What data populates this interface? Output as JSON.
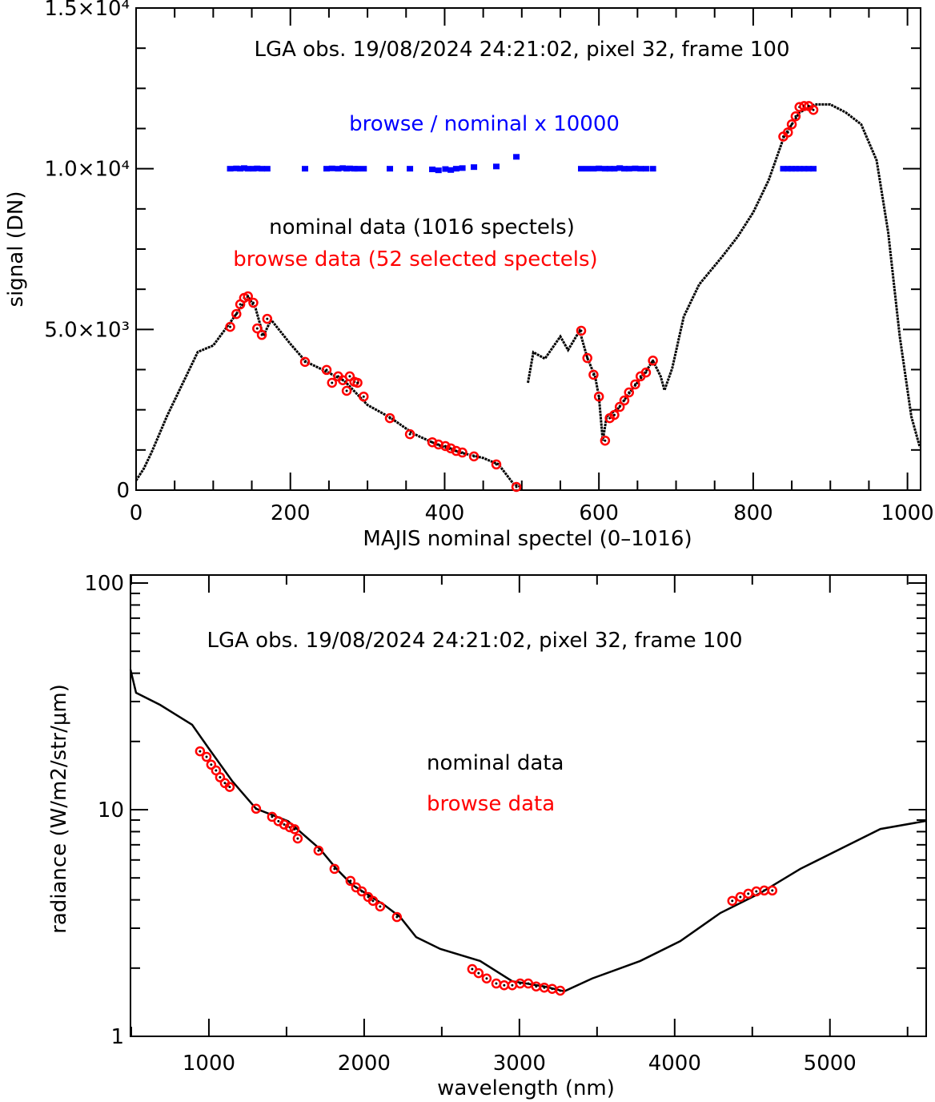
{
  "colors": {
    "nominal": "#000000",
    "browse": "#ff0000",
    "ratio": "#0000ff"
  },
  "chart_data": [
    {
      "type": "scatter",
      "title": "LGA obs. 19/08/2024 24:21:02, pixel 32, frame 100",
      "xlabel": "MAJIS nominal spectel (0–1016)",
      "ylabel": "signal (DN)",
      "xlim": [
        0,
        1017
      ],
      "ylim": [
        0,
        15000
      ],
      "x_ticks": [
        0,
        200,
        400,
        600,
        800,
        1000
      ],
      "x_tick_labels": [
        "0",
        "200",
        "400",
        "600",
        "800",
        "1000"
      ],
      "y_ticks": [
        0,
        5000,
        10000,
        15000
      ],
      "y_tick_labels": [
        "0",
        "5.0×10³",
        "1.0×10⁴",
        "1.5×10⁴"
      ],
      "annotations": {
        "ratio_label": "browse / nominal x 10000",
        "nominal_label": "nominal data (1016 spectels)",
        "browse_label": "browse data (52 selected spectels)"
      },
      "series": [
        {
          "name": "nominal data",
          "segments": [
            {
              "x": [
                0,
                10,
                20,
                40,
                60,
                80,
                100,
                120,
                135,
                145,
                155,
                165,
                175,
                200,
                220,
                250,
                270,
                300,
                330,
                360,
                390,
                420,
                450,
                470,
                490,
                500
              ],
              "y": [
                300,
                670,
                1170,
                2300,
                3300,
                4300,
                4500,
                5150,
                5650,
                6030,
                5650,
                4800,
                5300,
                4550,
                4000,
                3650,
                3400,
                2650,
                2250,
                1750,
                1420,
                1170,
                1000,
                800,
                170,
                100
              ]
            },
            {
              "x": [
                508,
                515,
                530,
                550,
                560,
                575,
                585,
                595,
                600,
                605,
                610,
                625,
                640,
                660,
                670,
                680,
                685,
                695,
                710,
                730,
                760,
                780,
                800,
                820,
                840,
                860,
                880,
                900,
                920,
                940,
                960,
                975,
                990,
                1005,
                1016
              ],
              "y": [
                3340,
                4290,
                4090,
                4780,
                4360,
                4960,
                4110,
                3540,
                2910,
                1540,
                2290,
                2540,
                3040,
                3660,
                4030,
                3540,
                3110,
                3790,
                5400,
                6400,
                7270,
                7890,
                8640,
                9640,
                11000,
                11750,
                12000,
                12000,
                11750,
                11380,
                10260,
                8020,
                4780,
                2290,
                1340
              ]
            }
          ]
        },
        {
          "name": "browse data",
          "x": [
            122,
            130,
            135,
            140,
            145,
            152,
            157,
            163,
            170,
            219,
            247,
            254,
            262,
            268,
            273,
            277,
            283,
            287,
            295,
            329,
            355,
            384,
            392,
            401,
            408,
            415,
            423,
            438,
            467,
            493,
            577,
            585,
            593,
            600,
            608,
            614,
            620,
            627,
            633,
            639,
            647,
            654,
            661,
            670,
            839,
            845,
            850,
            855,
            860,
            866,
            872,
            878
          ],
          "y": [
            5080,
            5480,
            5780,
            5980,
            6030,
            5830,
            5030,
            4830,
            5330,
            3990,
            3740,
            3340,
            3540,
            3420,
            3090,
            3540,
            3370,
            3340,
            2910,
            2240,
            1740,
            1490,
            1420,
            1370,
            1300,
            1220,
            1170,
            1050,
            800,
            100,
            4960,
            4110,
            3590,
            2910,
            1540,
            2240,
            2340,
            2590,
            2790,
            3040,
            3290,
            3540,
            3660,
            4030,
            11000,
            11130,
            11380,
            11630,
            11920,
            11950,
            11950,
            11830
          ]
        },
        {
          "name": "browse / nominal x 10000",
          "x": [
            122,
            130,
            135,
            140,
            145,
            152,
            157,
            163,
            170,
            219,
            247,
            254,
            262,
            268,
            273,
            277,
            283,
            287,
            295,
            329,
            355,
            384,
            392,
            401,
            408,
            415,
            423,
            438,
            467,
            493,
            577,
            585,
            593,
            600,
            608,
            614,
            620,
            627,
            633,
            639,
            647,
            654,
            661,
            670,
            839,
            845,
            850,
            855,
            860,
            866,
            872,
            878
          ],
          "y": [
            10000,
            10010,
            10000,
            10020,
            10000,
            10000,
            10010,
            10000,
            10000,
            10000,
            10000,
            10010,
            10000,
            10020,
            10000,
            10010,
            10000,
            10000,
            10000,
            10000,
            10000,
            9980,
            9950,
            9990,
            9960,
            10000,
            10020,
            10050,
            10070,
            10370,
            10000,
            10000,
            10000,
            10010,
            10000,
            10000,
            10000,
            10020,
            10000,
            10000,
            10010,
            10000,
            10000,
            10000,
            10000,
            10000,
            10000,
            10000,
            10000,
            10000,
            10000,
            10000
          ]
        }
      ]
    },
    {
      "type": "line",
      "title": "LGA obs. 19/08/2024 24:21:02, pixel 32, frame 100",
      "xlabel": "wavelength (nm)",
      "ylabel": "radiance (W/m2/str/μm)",
      "xlim": [
        495,
        5620
      ],
      "ylim": [
        1,
        100
      ],
      "yscale": "log",
      "x_ticks": [
        1000,
        2000,
        3000,
        4000,
        5000
      ],
      "x_tick_labels": [
        "1000",
        "2000",
        "3000",
        "4000",
        "5000"
      ],
      "y_ticks": [
        1,
        10,
        100
      ],
      "y_tick_labels": [
        "1",
        "10",
        "100"
      ],
      "annotations": {
        "nominal_label": "nominal data",
        "browse_label": "browse data"
      },
      "series": [
        {
          "name": "nominal data",
          "x": [
            495,
            531,
            686,
            892,
            1000,
            1149,
            1304,
            1510,
            1716,
            1820,
            1923,
            2129,
            2232,
            2335,
            2490,
            2747,
            2954,
            3160,
            3289,
            3469,
            3778,
            4036,
            4294,
            4552,
            4809,
            5067,
            5325,
            5619
          ],
          "y": [
            41.5,
            32.8,
            29,
            23.7,
            18.6,
            13.4,
            10.1,
            8.9,
            6.7,
            5.5,
            4.66,
            3.8,
            3.36,
            2.74,
            2.43,
            2.15,
            1.75,
            1.66,
            1.58,
            1.8,
            2.15,
            2.63,
            3.5,
            4.29,
            5.48,
            6.71,
            8.22,
            8.92
          ]
        },
        {
          "name": "browse data",
          "x": [
            943,
            985,
            1015,
            1046,
            1072,
            1103,
            1134,
            1304,
            1407,
            1448,
            1485,
            1521,
            1552,
            1572,
            1706,
            1809,
            1912,
            1948,
            1985,
            2026,
            2057,
            2103,
            2211,
            2696,
            2737,
            2789,
            2851,
            2902,
            2954,
            3005,
            3057,
            3108,
            3160,
            3211,
            3263,
            4371,
            4423,
            4474,
            4526,
            4577,
            4629
          ],
          "y": [
            18.1,
            17.1,
            15.8,
            14.9,
            13.9,
            13.1,
            12.6,
            10.1,
            9.3,
            8.9,
            8.6,
            8.36,
            8.2,
            7.46,
            6.6,
            5.48,
            4.85,
            4.54,
            4.36,
            4.12,
            3.96,
            3.74,
            3.36,
            1.98,
            1.9,
            1.8,
            1.71,
            1.68,
            1.68,
            1.71,
            1.71,
            1.66,
            1.64,
            1.62,
            1.59,
            3.96,
            4.12,
            4.26,
            4.36,
            4.4,
            4.4
          ]
        }
      ]
    }
  ]
}
